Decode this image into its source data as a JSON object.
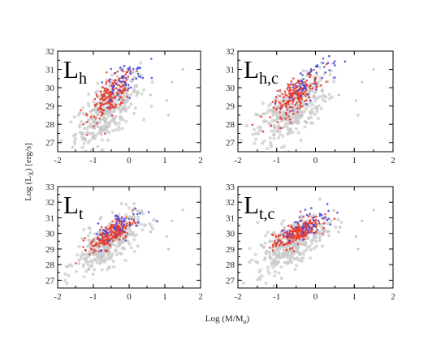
{
  "figure": {
    "xlabel": "Log (M/M",
    "xlabel_sub": "o",
    "xlabel_end": ")",
    "ylabel": "Log (L",
    "ylabel_sub": "X",
    "ylabel_end": ") [erg/s]"
  },
  "chart_data": [
    {
      "type": "scatter",
      "panel_label_main": "L",
      "panel_label_sub": "h",
      "xlim": [
        -2,
        2
      ],
      "ylim": [
        26.5,
        32
      ],
      "xticks": [
        -2,
        -1,
        0,
        1,
        2
      ],
      "yticks": [
        27,
        28,
        29,
        30,
        31,
        32
      ],
      "grid": false,
      "series": [
        {
          "color": "#c8c8c8",
          "cloud": {
            "x_mean": -0.6,
            "x_sd": 0.45,
            "slope": 1.4,
            "intercept": 28.9,
            "scatter": 0.75,
            "n": 360
          }
        },
        {
          "color": "#e8392c",
          "cloud": {
            "x_mean": -0.5,
            "x_sd": 0.3,
            "slope": 1.45,
            "intercept": 29.55,
            "scatter": 0.45,
            "n": 170
          }
        },
        {
          "color": "#4a4ad8",
          "cloud": {
            "x_mean": -0.2,
            "x_sd": 0.35,
            "slope": 1.3,
            "intercept": 29.9,
            "scatter": 0.5,
            "n": 55
          }
        }
      ]
    },
    {
      "type": "scatter",
      "panel_label_main": "L",
      "panel_label_sub": "h,c",
      "xlim": [
        -2,
        2
      ],
      "ylim": [
        26.5,
        32
      ],
      "xticks": [
        -2,
        -1,
        0,
        1,
        2
      ],
      "yticks": [
        27,
        28,
        29,
        30,
        31,
        32
      ],
      "grid": false,
      "series": [
        {
          "color": "#c8c8c8",
          "cloud": {
            "x_mean": -0.6,
            "x_sd": 0.45,
            "slope": 1.4,
            "intercept": 28.9,
            "scatter": 0.75,
            "n": 360
          }
        },
        {
          "color": "#e8392c",
          "cloud": {
            "x_mean": -0.5,
            "x_sd": 0.3,
            "slope": 1.5,
            "intercept": 29.6,
            "scatter": 0.42,
            "n": 190
          }
        },
        {
          "color": "#4a4ad8",
          "cloud": {
            "x_mean": -0.2,
            "x_sd": 0.35,
            "slope": 1.3,
            "intercept": 29.95,
            "scatter": 0.5,
            "n": 55
          }
        }
      ]
    },
    {
      "type": "scatter",
      "panel_label_main": "L",
      "panel_label_sub": "t",
      "xlim": [
        -2,
        2
      ],
      "ylim": [
        26.5,
        33
      ],
      "xticks": [
        -2,
        -1,
        0,
        1,
        2
      ],
      "yticks": [
        27,
        28,
        29,
        30,
        31,
        32,
        33
      ],
      "grid": false,
      "series": [
        {
          "color": "#c8c8c8",
          "cloud": {
            "x_mean": -0.6,
            "x_sd": 0.45,
            "slope": 1.3,
            "intercept": 29.5,
            "scatter": 0.7,
            "n": 360
          }
        },
        {
          "color": "#e8392c",
          "cloud": {
            "x_mean": -0.5,
            "x_sd": 0.3,
            "slope": 1.3,
            "intercept": 29.95,
            "scatter": 0.38,
            "n": 190
          }
        },
        {
          "color": "#4a4ad8",
          "cloud": {
            "x_mean": -0.2,
            "x_sd": 0.35,
            "slope": 1.2,
            "intercept": 30.2,
            "scatter": 0.45,
            "n": 55
          }
        }
      ]
    },
    {
      "type": "scatter",
      "panel_label_main": "L",
      "panel_label_sub": "t,c",
      "xlim": [
        -2,
        2
      ],
      "ylim": [
        26.5,
        33
      ],
      "xticks": [
        -2,
        -1,
        0,
        1,
        2
      ],
      "yticks": [
        27,
        28,
        29,
        30,
        31,
        32,
        33
      ],
      "grid": false,
      "series": [
        {
          "color": "#c8c8c8",
          "cloud": {
            "x_mean": -0.6,
            "x_sd": 0.45,
            "slope": 1.3,
            "intercept": 29.5,
            "scatter": 0.7,
            "n": 360
          }
        },
        {
          "color": "#e8392c",
          "cloud": {
            "x_mean": -0.5,
            "x_sd": 0.3,
            "slope": 1.3,
            "intercept": 30.0,
            "scatter": 0.35,
            "n": 210
          }
        },
        {
          "color": "#4a4ad8",
          "cloud": {
            "x_mean": -0.2,
            "x_sd": 0.35,
            "slope": 1.2,
            "intercept": 30.25,
            "scatter": 0.45,
            "n": 55
          }
        }
      ]
    }
  ]
}
